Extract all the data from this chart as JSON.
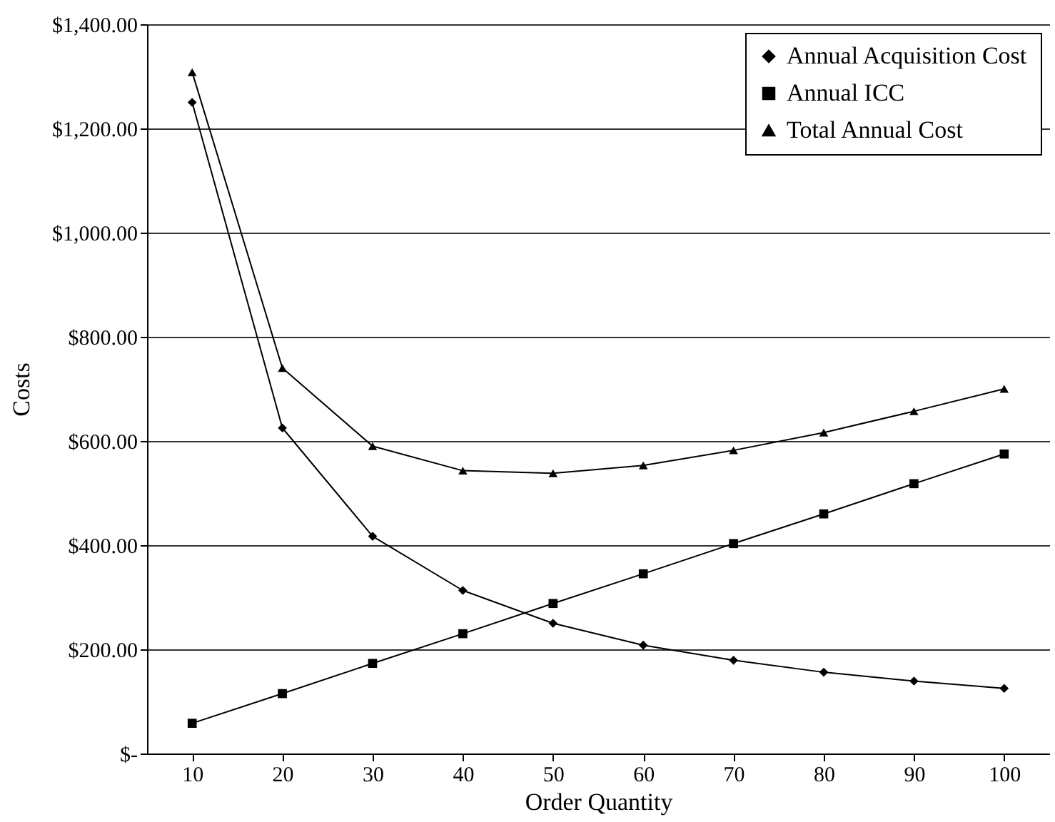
{
  "chart_data": {
    "type": "line",
    "xlabel": "Order Quantity",
    "ylabel": "Costs",
    "categories": [
      "10",
      "20",
      "30",
      "40",
      "50",
      "60",
      "70",
      "80",
      "90",
      "100"
    ],
    "series": [
      {
        "name": "Annual Acquisition Cost",
        "color": "#000000",
        "marker": "diamond",
        "values": [
          1250,
          625,
          417,
          313,
          250,
          208,
          179,
          156,
          139,
          125
        ]
      },
      {
        "name": "Annual ICC",
        "color": "#000000",
        "marker": "square",
        "values": [
          58,
          115,
          173,
          230,
          288,
          345,
          403,
          460,
          518,
          575
        ]
      },
      {
        "name": "Total Annual Cost",
        "color": "#000000",
        "marker": "triangle",
        "values": [
          1308,
          740,
          590,
          543,
          538,
          553,
          582,
          616,
          657,
          700
        ]
      }
    ],
    "ylim": [
      0,
      1400
    ],
    "yticks": [
      {
        "value": 0,
        "label": "$-"
      },
      {
        "value": 200,
        "label": "$200.00"
      },
      {
        "value": 400,
        "label": "$400.00"
      },
      {
        "value": 600,
        "label": "$600.00"
      },
      {
        "value": 800,
        "label": "$800.00"
      },
      {
        "value": 1000,
        "label": "$1,000.00"
      },
      {
        "value": 1200,
        "label": "$1,200.00"
      },
      {
        "value": 1400,
        "label": "$1,400.00"
      }
    ],
    "grid": "y",
    "legend": "top right",
    "line_style": "solid"
  }
}
